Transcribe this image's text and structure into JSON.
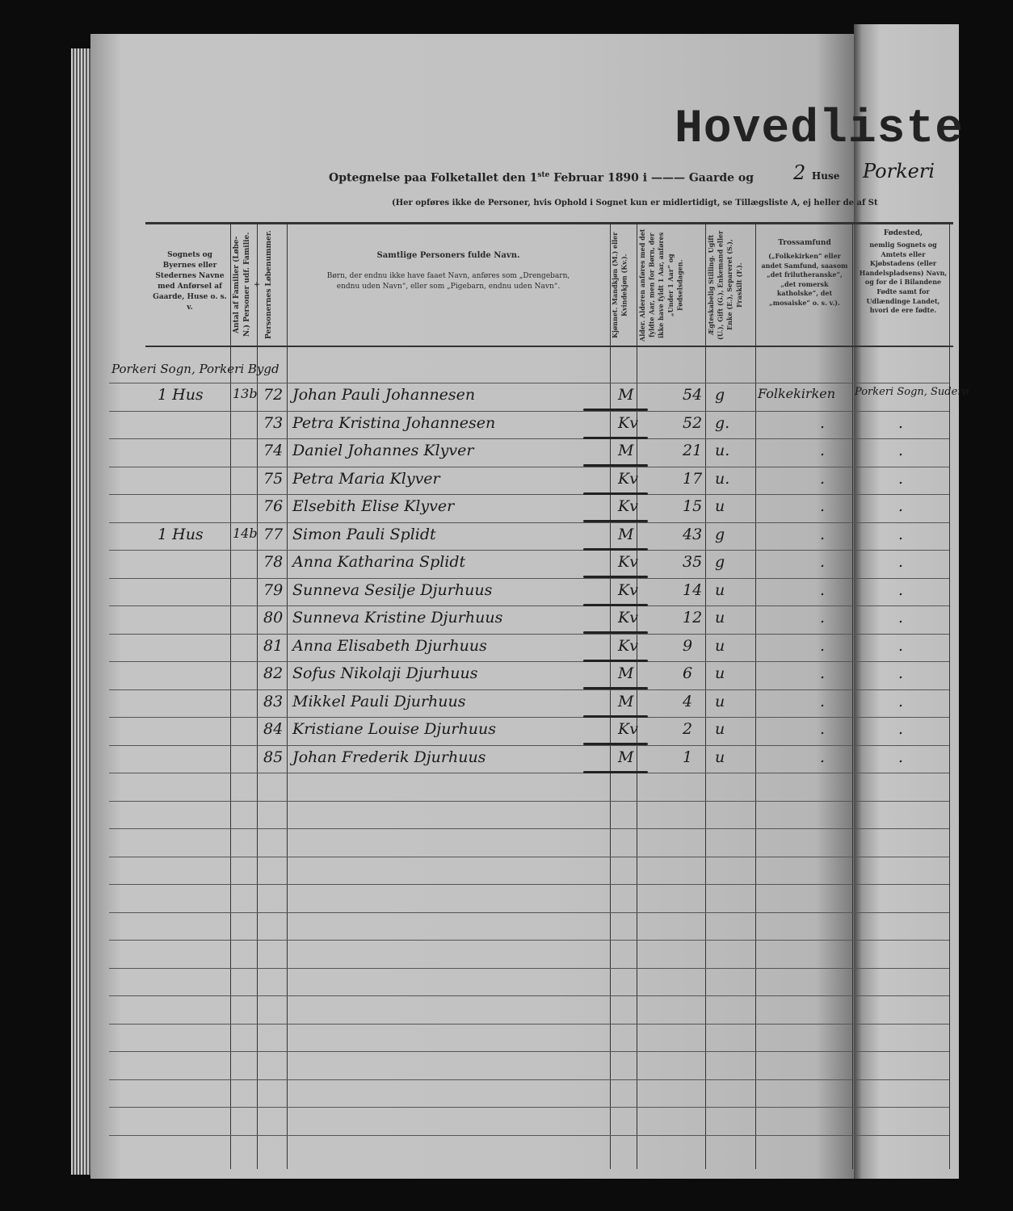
{
  "header": {
    "title": "Hovedliste",
    "subtitle_prefix": "Optegnelse paa Folketallet den 1",
    "subtitle_sup": "ste",
    "subtitle_suffix": " Februar 1890 i ——— Gaarde og",
    "houses_count": "2",
    "houses_label": "Huse",
    "place": "Porkeri",
    "note": "(Her opføres ikke de Personer, hvis Ophold i Sognet kun er midlertidigt, se Tillægsliste A, ej heller de af St"
  },
  "columns": {
    "parish": "Sognets og Byernes eller Stedernes Navne med Anførsel af Gaarde, Huse o. s. v.",
    "families": "Antal af Familier (Løbe-N.) Personer udf. Familie. +",
    "person_no": "Personernes Løbenummer.",
    "name_title": "Samtlige Personers fulde Navn.",
    "name_note": "Børn, der endnu ikke have faaet Navn, anføres som „Drengebarn, endnu uden Navn“, eller som „Pigebarn, endnu uden Navn“.",
    "sex": "Kjønnet. Mandkjøn (M.) eller Kvindekjøn (Kv.).",
    "age": "Alder. Alderen anføres med det fyldte Aar, men for Børn, der ikke have fyldt 1 Aar, anføres „Under 1 Aar“ og Fødselsdagen.",
    "civil": "Ægteskabelig Stilling. Ugift (U.), Gift (G.), Enkemand eller Enke (E.), Separeret (S.), Fraskilt (F.).",
    "religion_title": "Trossamfund",
    "religion_note": "(„Folkekirken“ eller andet Samfund, saasom „det frilutheranske“, „det romersk katholske“, det „mosaiske“ o. s. v.).",
    "birthplace_title": "Fødested,",
    "birthplace_note": "nemlig Sognets og Amtets eller Kjøbstadens (eller Handelspladsens) Navn, og for de i Bilandene Fødte samt for Udlændinge Landet, hvori de ere fødte."
  },
  "parish_entry": "Porkeri Sogn, Porkeri Bygd",
  "rows": [
    {
      "house": "1 Hus",
      "family": "13b",
      "num": "72",
      "name": "Johan Pauli Johannesen",
      "sex": "M",
      "age": "54",
      "civil": "g",
      "religion": "Folkekirken",
      "birthplace": "Porkeri Sogn, Suderø"
    },
    {
      "house": "",
      "family": "",
      "num": "73",
      "name": "Petra Kristina Johannesen",
      "sex": "Kv",
      "age": "52",
      "civil": "g.",
      "religion": ".",
      "birthplace": "."
    },
    {
      "house": "",
      "family": "",
      "num": "74",
      "name": "Daniel Johannes Klyver",
      "sex": "M",
      "age": "21",
      "civil": "u.",
      "religion": ".",
      "birthplace": "."
    },
    {
      "house": "",
      "family": "",
      "num": "75",
      "name": "Petra Maria Klyver",
      "sex": "Kv",
      "age": "17",
      "civil": "u.",
      "religion": ".",
      "birthplace": "."
    },
    {
      "house": "",
      "family": "",
      "num": "76",
      "name": "Elsebith Elise Klyver",
      "sex": "Kv",
      "age": "15",
      "civil": "u",
      "religion": ".",
      "birthplace": "."
    },
    {
      "house": "1 Hus",
      "family": "14b",
      "num": "77",
      "name": "Simon Pauli Splidt",
      "sex": "M",
      "age": "43",
      "civil": "g",
      "religion": ".",
      "birthplace": "."
    },
    {
      "house": "",
      "family": "",
      "num": "78",
      "name": "Anna Katharina Splidt",
      "sex": "Kv",
      "age": "35",
      "civil": "g",
      "religion": ".",
      "birthplace": "."
    },
    {
      "house": "",
      "family": "",
      "num": "79",
      "name": "Sunneva Sesilje Djurhuus",
      "sex": "Kv",
      "age": "14",
      "civil": "u",
      "religion": ".",
      "birthplace": "."
    },
    {
      "house": "",
      "family": "",
      "num": "80",
      "name": "Sunneva Kristine Djurhuus",
      "sex": "Kv",
      "age": "12",
      "civil": "u",
      "religion": ".",
      "birthplace": "."
    },
    {
      "house": "",
      "family": "",
      "num": "81",
      "name": "Anna Elisabeth Djurhuus",
      "sex": "Kv",
      "age": "9",
      "civil": "u",
      "religion": ".",
      "birthplace": "."
    },
    {
      "house": "",
      "family": "",
      "num": "82",
      "name": "Sofus Nikolaji Djurhuus",
      "sex": "M",
      "age": "6",
      "civil": "u",
      "religion": ".",
      "birthplace": "."
    },
    {
      "house": "",
      "family": "",
      "num": "83",
      "name": "Mikkel Pauli Djurhuus",
      "sex": "M",
      "age": "4",
      "civil": "u",
      "religion": ".",
      "birthplace": "."
    },
    {
      "house": "",
      "family": "",
      "num": "84",
      "name": "Kristiane Louise Djurhuus",
      "sex": "Kv",
      "age": "2",
      "civil": "u",
      "religion": ".",
      "birthplace": "."
    },
    {
      "house": "",
      "family": "",
      "num": "85",
      "name": "Johan Frederik Djurhuus",
      "sex": "M",
      "age": "1",
      "civil": "u",
      "religion": ".",
      "birthplace": "."
    }
  ]
}
